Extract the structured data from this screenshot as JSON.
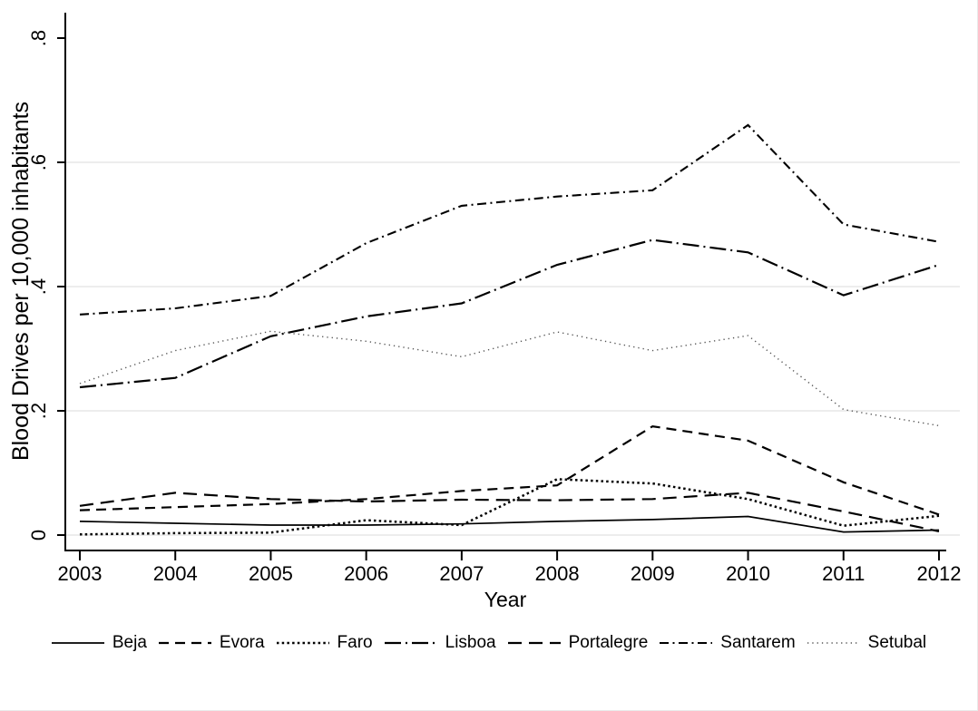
{
  "chart_data": {
    "type": "line",
    "title": "",
    "xlabel": "Year",
    "ylabel": "Blood Drives per 10,000 inhabitants",
    "x": [
      2003,
      2004,
      2005,
      2006,
      2007,
      2008,
      2009,
      2010,
      2011,
      2012
    ],
    "x_tick_labels": [
      "2003",
      "2004",
      "2005",
      "2006",
      "2007",
      "2008",
      "2009",
      "2010",
      "2011",
      "2012"
    ],
    "y_ticks": [
      0,
      0.2,
      0.4,
      0.6,
      0.8
    ],
    "y_tick_labels": [
      "0",
      ".2",
      ".4",
      ".6",
      ".8"
    ],
    "ylim": [
      0,
      0.8
    ],
    "grid_values": [
      0,
      0.2,
      0.4,
      0.6
    ],
    "grid_on": true,
    "legend_position": "bottom",
    "series": [
      {
        "name": "Beja",
        "style": "solid",
        "values": [
          0.022,
          0.019,
          0.016,
          0.016,
          0.018,
          0.022,
          0.025,
          0.03,
          0.005,
          0.008
        ]
      },
      {
        "name": "Evora",
        "style": "dash",
        "values": [
          0.04,
          0.045,
          0.05,
          0.058,
          0.071,
          0.08,
          0.175,
          0.152,
          0.085,
          0.033
        ]
      },
      {
        "name": "Faro",
        "style": "dot",
        "values": [
          0.001,
          0.003,
          0.004,
          0.024,
          0.016,
          0.09,
          0.083,
          0.058,
          0.015,
          0.031
        ]
      },
      {
        "name": "Lisboa",
        "style": "longdashdot",
        "values": [
          0.238,
          0.253,
          0.32,
          0.352,
          0.373,
          0.435,
          0.475,
          0.455,
          0.386,
          0.435
        ]
      },
      {
        "name": "Portalegre",
        "style": "longdash",
        "values": [
          0.047,
          0.068,
          0.058,
          0.054,
          0.057,
          0.056,
          0.058,
          0.068,
          0.038,
          0.006
        ]
      },
      {
        "name": "Santarem",
        "style": "dashdot",
        "values": [
          0.355,
          0.365,
          0.385,
          0.47,
          0.53,
          0.545,
          0.555,
          0.66,
          0.5,
          0.472
        ]
      },
      {
        "name": "Setubal",
        "style": "finedot",
        "values": [
          0.244,
          0.297,
          0.328,
          0.312,
          0.287,
          0.327,
          0.297,
          0.321,
          0.202,
          0.176
        ]
      }
    ],
    "colors": {
      "line": "#000000",
      "finedot_line": "#555555",
      "grid": "#e7e7e7",
      "background": "#ffffff",
      "text": "#000000"
    }
  }
}
